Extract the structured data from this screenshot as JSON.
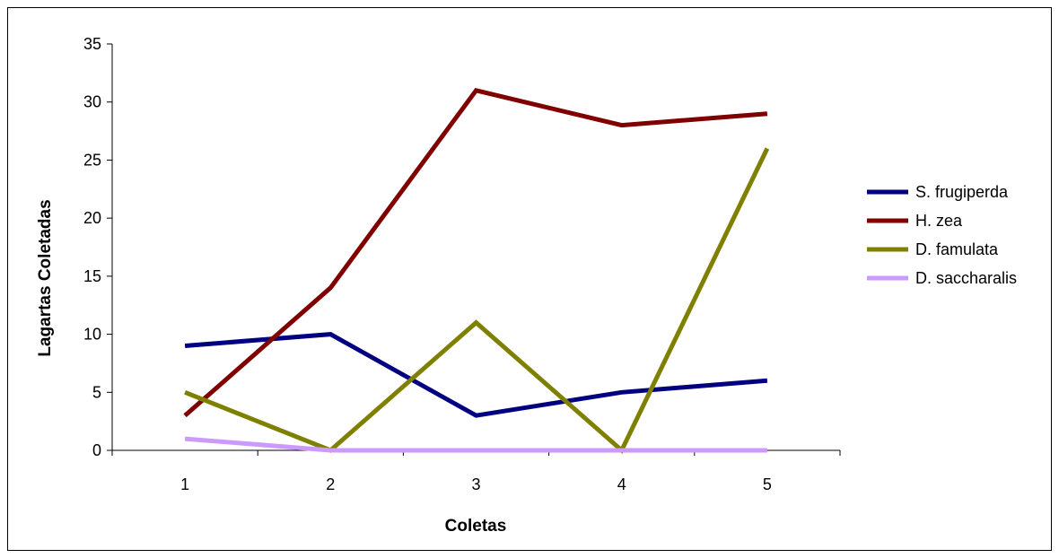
{
  "chart_data": {
    "type": "line",
    "title": "",
    "xlabel": "Coletas",
    "ylabel": "Lagartas Coletadas",
    "categories": [
      "1",
      "2",
      "3",
      "4",
      "5"
    ],
    "yticks": [
      "0",
      "5",
      "10",
      "15",
      "20",
      "25",
      "30",
      "35"
    ],
    "ylim": [
      0,
      35
    ],
    "grid": false,
    "legend_position": "right",
    "series": [
      {
        "name": "S. frugiperda",
        "color": "#000080",
        "values": [
          9,
          10,
          3,
          5,
          6
        ]
      },
      {
        "name": "H. zea",
        "color": "#800000",
        "values": [
          3,
          14,
          31,
          28,
          29
        ]
      },
      {
        "name": "D. famulata",
        "color": "#808000",
        "values": [
          5,
          0,
          11,
          0,
          26
        ]
      },
      {
        "name": "D. saccharalis",
        "color": "#cc99ff",
        "values": [
          1,
          0,
          0,
          0,
          0
        ]
      }
    ]
  }
}
